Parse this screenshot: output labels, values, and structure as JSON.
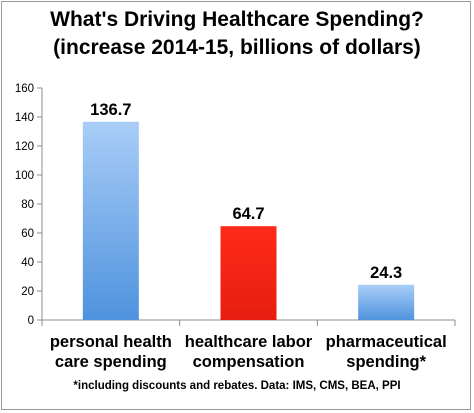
{
  "chart_data": {
    "type": "bar",
    "title": "What's Driving Healthcare Spending?",
    "subtitle": "(increase 2014-15, billions of dollars)",
    "categories": [
      [
        "personal health",
        "care spending"
      ],
      [
        "healthcare labor",
        "compensation"
      ],
      [
        "pharmaceutical",
        "spending*"
      ]
    ],
    "values": [
      136.7,
      64.7,
      24.3
    ],
    "value_labels": [
      "136.7",
      "64.7",
      "24.3"
    ],
    "ylim": [
      0,
      160
    ],
    "yticks": [
      0,
      20,
      40,
      60,
      80,
      100,
      120,
      140,
      160
    ],
    "grid": false,
    "legend": "none",
    "bar_colors": [
      [
        "#a9cdf7",
        "#4f93de"
      ],
      [
        "#ff2a1a",
        "#e61e0f"
      ],
      [
        "#a9cdf7",
        "#4f93de"
      ]
    ],
    "footnote": "*including discounts and rebates. Data: IMS, CMS, BEA, PPI"
  }
}
